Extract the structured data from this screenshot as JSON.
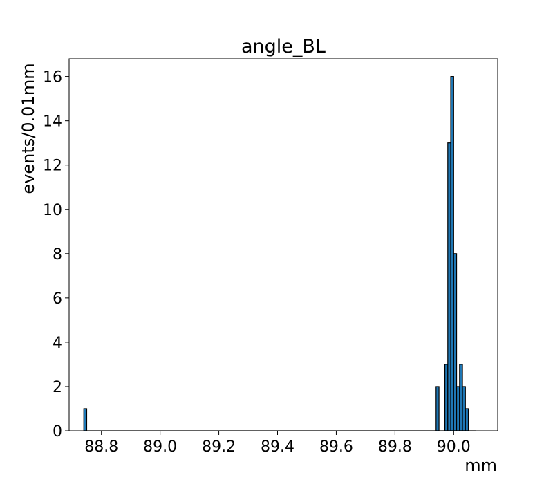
{
  "chart_data": {
    "type": "bar",
    "title": "angle_BL",
    "xlabel": "mm",
    "ylabel": "events/0.01mm",
    "xlim": [
      88.69,
      90.15
    ],
    "ylim": [
      0,
      16.8
    ],
    "bin_width": 0.01,
    "x_ticks": [
      {
        "value": 88.8,
        "label": "88.8"
      },
      {
        "value": 89.0,
        "label": "89.0"
      },
      {
        "value": 89.2,
        "label": "89.2"
      },
      {
        "value": 89.4,
        "label": "89.4"
      },
      {
        "value": 89.6,
        "label": "89.6"
      },
      {
        "value": 89.8,
        "label": "89.8"
      },
      {
        "value": 90.0,
        "label": "90.0"
      }
    ],
    "y_ticks": [
      {
        "value": 0,
        "label": "0"
      },
      {
        "value": 2,
        "label": "2"
      },
      {
        "value": 4,
        "label": "4"
      },
      {
        "value": 6,
        "label": "6"
      },
      {
        "value": 8,
        "label": "8"
      },
      {
        "value": 10,
        "label": "10"
      },
      {
        "value": 12,
        "label": "12"
      },
      {
        "value": 14,
        "label": "14"
      },
      {
        "value": 16,
        "label": "16"
      }
    ],
    "bins": [
      {
        "x": 88.745,
        "count": 1
      },
      {
        "x": 89.945,
        "count": 2
      },
      {
        "x": 89.975,
        "count": 3
      },
      {
        "x": 89.985,
        "count": 13
      },
      {
        "x": 89.995,
        "count": 16
      },
      {
        "x": 90.005,
        "count": 8
      },
      {
        "x": 90.015,
        "count": 2
      },
      {
        "x": 90.025,
        "count": 3
      },
      {
        "x": 90.035,
        "count": 2
      },
      {
        "x": 90.045,
        "count": 1
      }
    ],
    "bar_color": "#1f77b4",
    "edge_color": "#000000",
    "grid": false,
    "legend": "none"
  }
}
